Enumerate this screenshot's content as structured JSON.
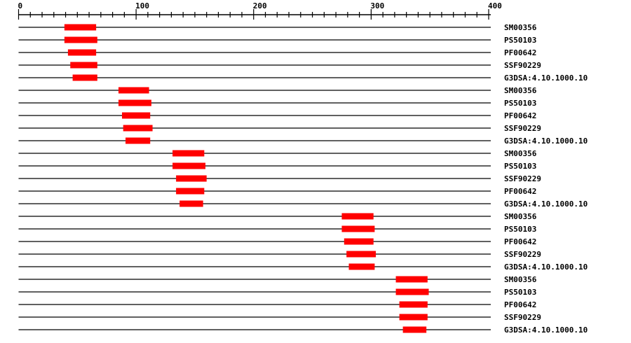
{
  "chart_data": {
    "type": "domain-track",
    "axis": {
      "min": 0,
      "max": 400,
      "major_ticks": [
        0,
        100,
        200,
        300,
        400
      ],
      "minor_step": 10
    },
    "bar_color": "#ff0000",
    "tracks": [
      {
        "label": "SM00356",
        "start": 39,
        "end": 66
      },
      {
        "label": "PS50103",
        "start": 39,
        "end": 67
      },
      {
        "label": "PF00642",
        "start": 42,
        "end": 66
      },
      {
        "label": "SSF90229",
        "start": 44,
        "end": 67
      },
      {
        "label": "G3DSA:4.10.1000.10",
        "start": 46,
        "end": 67
      },
      {
        "label": "SM00356",
        "start": 85,
        "end": 111
      },
      {
        "label": "PS50103",
        "start": 85,
        "end": 113
      },
      {
        "label": "PF00642",
        "start": 88,
        "end": 112
      },
      {
        "label": "SSF90229",
        "start": 89,
        "end": 114
      },
      {
        "label": "G3DSA:4.10.1000.10",
        "start": 91,
        "end": 112
      },
      {
        "label": "SM00356",
        "start": 131,
        "end": 158
      },
      {
        "label": "PS50103",
        "start": 131,
        "end": 159
      },
      {
        "label": "SSF90229",
        "start": 134,
        "end": 160
      },
      {
        "label": "PF00642",
        "start": 134,
        "end": 158
      },
      {
        "label": "G3DSA:4.10.1000.10",
        "start": 137,
        "end": 157
      },
      {
        "label": "SM00356",
        "start": 275,
        "end": 302
      },
      {
        "label": "PS50103",
        "start": 275,
        "end": 303
      },
      {
        "label": "PF00642",
        "start": 277,
        "end": 302
      },
      {
        "label": "SSF90229",
        "start": 279,
        "end": 304
      },
      {
        "label": "G3DSA:4.10.1000.10",
        "start": 281,
        "end": 303
      },
      {
        "label": "SM00356",
        "start": 321,
        "end": 348
      },
      {
        "label": "PS50103",
        "start": 321,
        "end": 349
      },
      {
        "label": "PF00642",
        "start": 324,
        "end": 348
      },
      {
        "label": "SSF90229",
        "start": 324,
        "end": 348
      },
      {
        "label": "G3DSA:4.10.1000.10",
        "start": 327,
        "end": 347
      }
    ]
  }
}
